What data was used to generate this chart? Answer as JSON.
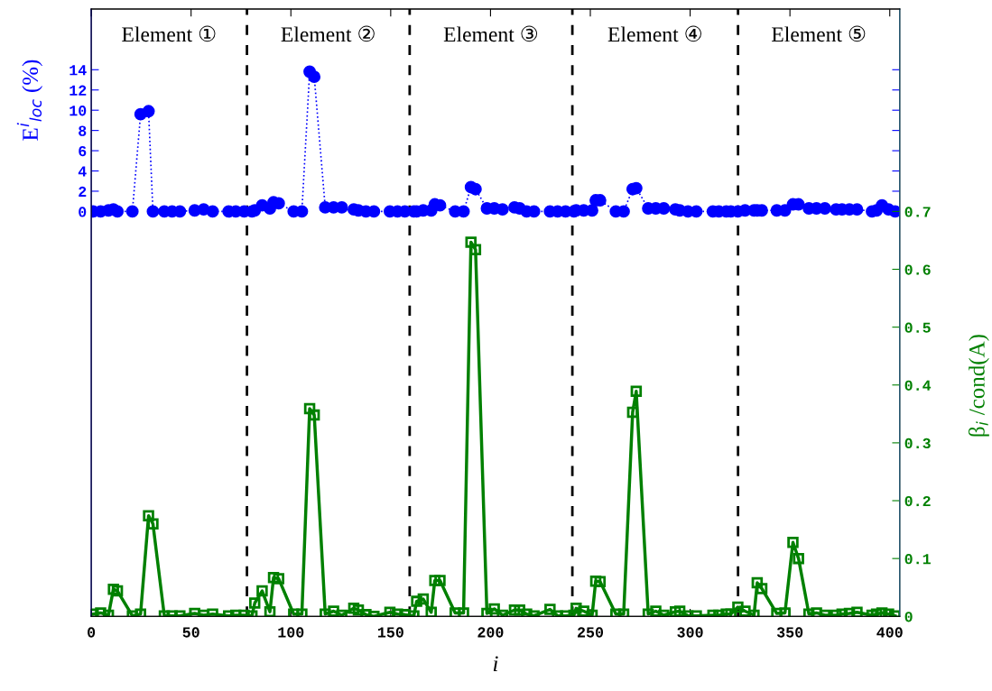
{
  "chart_data": {
    "type": "line",
    "xlabel": "i",
    "ylabel": "E$^{i}$$_{loc}$ (%)",
    "y2label": "β$_{i}$ /cond(A)",
    "x": [
      1.0,
      4.7,
      8.6,
      11.1,
      13.1,
      20.6,
      24.7,
      28.7,
      30.9,
      36.6,
      40.5,
      44.4,
      51.8,
      56.3,
      60.8,
      68.8,
      72.4,
      76.6,
      80.5,
      81.9,
      85.6,
      89.5,
      91.3,
      93.9,
      101.4,
      105.5,
      109.4,
      111.7,
      117.2,
      121.4,
      125.5,
      131.5,
      133.8,
      137.6,
      141.6,
      149.6,
      153.4,
      157.1,
      161.6,
      163.0,
      166.3,
      170.3,
      172.1,
      174.7,
      182.3,
      186.5,
      190.2,
      192.5,
      198.2,
      201.9,
      206.0,
      212.0,
      214.6,
      218.1,
      221.8,
      229.8,
      233.6,
      237.6,
      241.8,
      242.9,
      246.7,
      250.9,
      252.7,
      254.9,
      262.8,
      266.7,
      271.2,
      273.0,
      279.0,
      282.8,
      286.8,
      292.6,
      294.8,
      298.9,
      303.1,
      311.4,
      314.4,
      318.1,
      320.4,
      323.9,
      327.5,
      332.0,
      333.6,
      335.9,
      343.4,
      347.5,
      351.5,
      354.3,
      359.5,
      363.3,
      367.5,
      373.1,
      376.1,
      379.8,
      383.6,
      391.1,
      393.4,
      396.1,
      399.4,
      402.7
    ],
    "series": [
      {
        "color": "#0000ff",
        "marker": "circle",
        "line_style": "dotted",
        "values": [
          0,
          0,
          0.1,
          0.2,
          0,
          0,
          9.6,
          9.9,
          0,
          0,
          0,
          0,
          0.1,
          0.2,
          0,
          0,
          0,
          0,
          0,
          0.1,
          0.6,
          0.3,
          0.9,
          0.8,
          0,
          0,
          13.8,
          13.3,
          0.4,
          0.4,
          0.4,
          0.2,
          0.1,
          0,
          0,
          0,
          0,
          0,
          0,
          0,
          0.1,
          0.1,
          0.7,
          0.6,
          0,
          0,
          2.4,
          2.2,
          0.3,
          0.3,
          0.2,
          0.4,
          0.3,
          0,
          0,
          0,
          0,
          0,
          0,
          0.1,
          0.1,
          0.1,
          1.1,
          1.1,
          0,
          0,
          2.2,
          2.3,
          0.3,
          0.3,
          0.3,
          0.2,
          0.1,
          0,
          0,
          0,
          0,
          0,
          0,
          0,
          0.1,
          0.1,
          0.1,
          0.1,
          0.1,
          0.1,
          0.7,
          0.7,
          0.3,
          0.3,
          0.3,
          0.2,
          0.2,
          0.2,
          0.2,
          0,
          0.1,
          0.6,
          0.2,
          0
        ]
      },
      {
        "color": "#008000",
        "marker": "square",
        "line_style": "solid",
        "axis": "y2",
        "values": [
          0.004,
          0.006,
          0.002,
          0.047,
          0.044,
          0.001,
          0.004,
          0.174,
          0.16,
          0.001,
          0.001,
          0.001,
          0.005,
          0.002,
          0.004,
          0.001,
          0.002,
          0.002,
          0.001,
          0.023,
          0.044,
          0.008,
          0.067,
          0.065,
          0.004,
          0.004,
          0.359,
          0.348,
          0.004,
          0.009,
          0.002,
          0.014,
          0.011,
          0.003,
          0,
          0.007,
          0.004,
          0.003,
          0.001,
          0.026,
          0.03,
          0.007,
          0.062,
          0.062,
          0.006,
          0.006,
          0.647,
          0.634,
          0.005,
          0.013,
          0.002,
          0.011,
          0.011,
          0.004,
          0.001,
          0.012,
          0.001,
          0.001,
          0.002,
          0.014,
          0.009,
          0.002,
          0.061,
          0.06,
          0.004,
          0.004,
          0.353,
          0.389,
          0.004,
          0.009,
          0.002,
          0.008,
          0.009,
          0.001,
          0.001,
          0.002,
          0.002,
          0.004,
          0.004,
          0.016,
          0.009,
          0.002,
          0.058,
          0.048,
          0.005,
          0.006,
          0.128,
          0.1,
          0.004,
          0.006,
          0.002,
          0.002,
          0.004,
          0.005,
          0.007,
          0.002,
          0.004,
          0.006,
          0.004,
          0.001
        ]
      }
    ],
    "xlim": [
      0,
      405
    ],
    "xticks": [
      0,
      50,
      100,
      150,
      200,
      250,
      300,
      350,
      400
    ],
    "ylim": [
      -40,
      20
    ],
    "yticks": [
      0,
      2,
      4,
      6,
      8,
      10,
      12,
      14
    ],
    "y2lim": [
      0,
      1.05
    ],
    "y2ticks": [
      0,
      0.1,
      0.2,
      0.3,
      0.4,
      0.5,
      0.6,
      0.7
    ],
    "ref_lines": [
      {
        "axis": "x",
        "value": 78,
        "color": "#000000",
        "line_style": "dashed"
      },
      {
        "axis": "x",
        "value": 159.5,
        "color": "#000000",
        "line_style": "dashed"
      },
      {
        "axis": "x",
        "value": 241,
        "color": "#000000",
        "line_style": "dashed"
      },
      {
        "axis": "x",
        "value": 324,
        "color": "#000000",
        "line_style": "dashed"
      }
    ],
    "annotations": [
      "Element ①",
      "Element ②",
      "Element ③",
      "Element ④",
      "Element ⑤"
    ],
    "grid": false,
    "legend": false
  }
}
